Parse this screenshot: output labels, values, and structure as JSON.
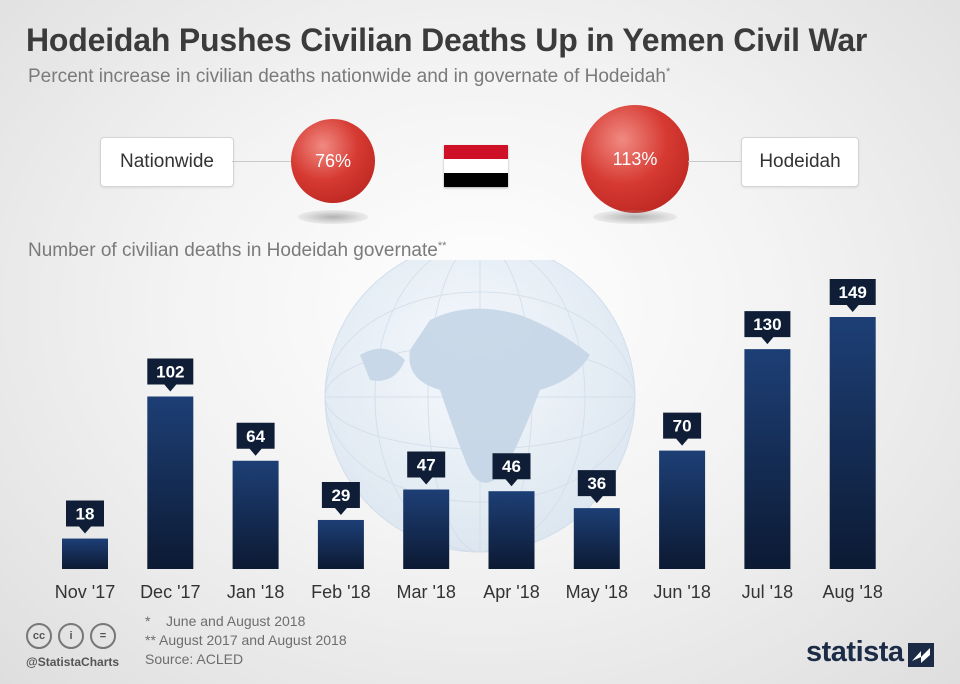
{
  "title": "Hodeidah Pushes Civilian Deaths Up in Yemen Civil War",
  "subtitle": "Percent increase in civilian deaths nationwide and in governate of Hodeidah",
  "subtitle_marker": "*",
  "comparison": {
    "nationwide_label": "Nationwide",
    "nationwide_value": "76%",
    "hodeidah_label": "Hodeidah",
    "hodeidah_value": "113%",
    "bubble_color": "#d63a32",
    "flag_colors": [
      "#ce1126",
      "#ffffff",
      "#000000"
    ]
  },
  "chart_heading": "Number of civilian deaths in Hodeidah governate",
  "chart_heading_marker": "**",
  "chart_data": {
    "type": "bar",
    "title": "Number of civilian deaths in Hodeidah governate",
    "categories": [
      "Nov '17",
      "Dec '17",
      "Jan '18",
      "Feb '18",
      "Mar '18",
      "Apr '18",
      "May '18",
      "Jun '18",
      "Jul '18",
      "Aug '18"
    ],
    "values": [
      18,
      102,
      64,
      29,
      47,
      46,
      36,
      70,
      130,
      149
    ],
    "ylim": [
      0,
      149
    ],
    "bar_color": "#1b3a6b",
    "label_color": "#0f1e36",
    "grid": false,
    "legend": "none"
  },
  "footnotes": [
    "*    June and August 2018",
    "** August 2017 and August 2018",
    "Source: ACLED"
  ],
  "license_icons": [
    "creative-commons-icon",
    "attribution-icon",
    "no-derivatives-icon"
  ],
  "license_glyphs": [
    "cc",
    "i",
    "="
  ],
  "handle": "@StatistaCharts",
  "brand": "statista"
}
